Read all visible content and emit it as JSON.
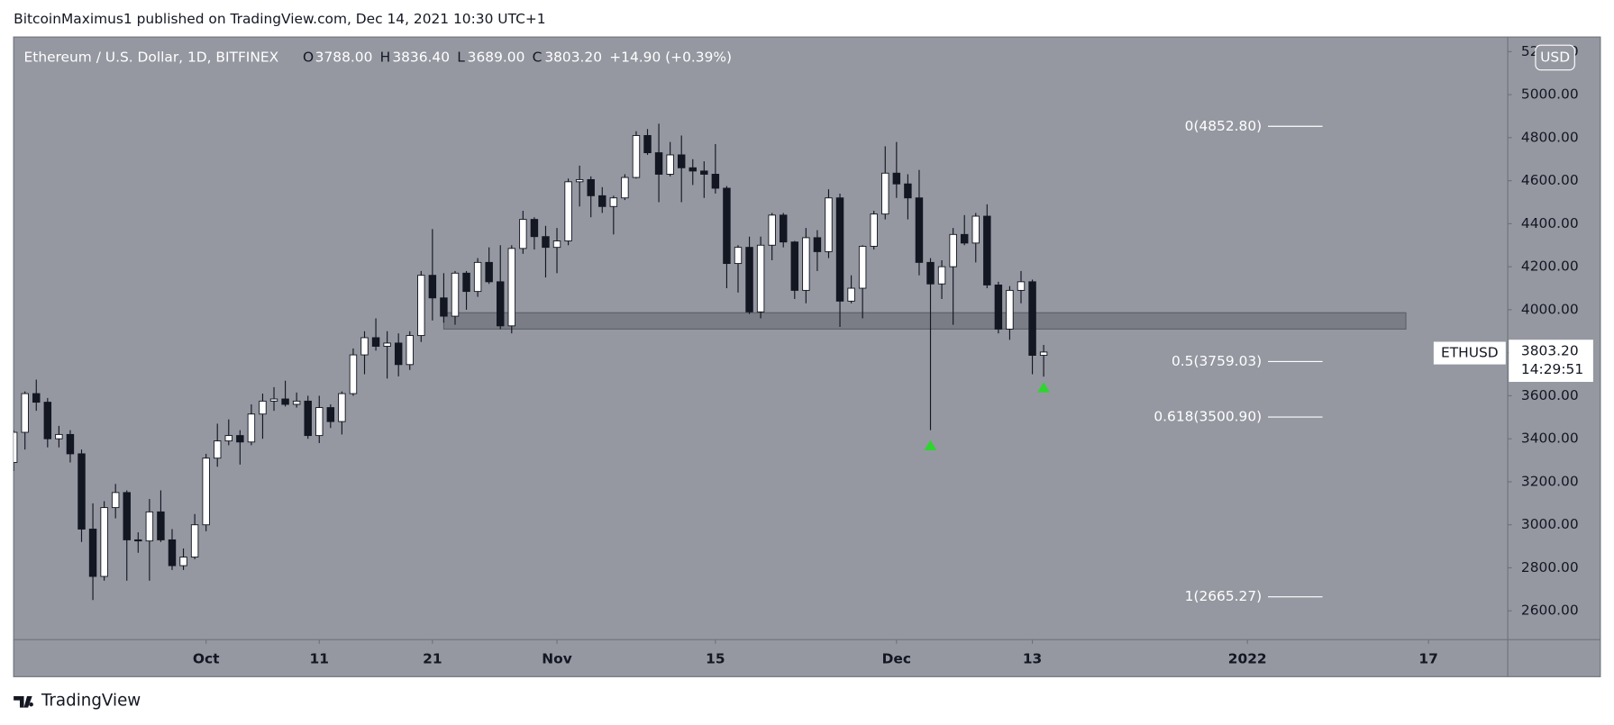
{
  "header": {
    "publisher": "BitcoinMaximus1 published on TradingView.com, Dec 14, 2021 10:30 UTC+1"
  },
  "footer": {
    "brand": "TradingView"
  },
  "chart_data": {
    "type": "candlestick",
    "title": "Ethereum / U.S. Dollar, 1D, BITFINEX",
    "legend": {
      "o_label": "O",
      "open": "3788.00",
      "h_label": "H",
      "high": "3836.40",
      "l_label": "L",
      "low": "3689.00",
      "c_label": "C",
      "close": "3803.20",
      "change": "+14.90 (+0.39%)"
    },
    "x": [
      "2021-09-14",
      "2021-09-15",
      "2021-09-16",
      "2021-09-17",
      "2021-09-18",
      "2021-09-19",
      "2021-09-20",
      "2021-09-21",
      "2021-09-22",
      "2021-09-23",
      "2021-09-24",
      "2021-09-25",
      "2021-09-26",
      "2021-09-27",
      "2021-09-28",
      "2021-09-29",
      "2021-09-30",
      "2021-10-01",
      "2021-10-02",
      "2021-10-03",
      "2021-10-04",
      "2021-10-05",
      "2021-10-06",
      "2021-10-07",
      "2021-10-08",
      "2021-10-09",
      "2021-10-10",
      "2021-10-11",
      "2021-10-12",
      "2021-10-13",
      "2021-10-14",
      "2021-10-15",
      "2021-10-16",
      "2021-10-17",
      "2021-10-18",
      "2021-10-19",
      "2021-10-20",
      "2021-10-21",
      "2021-10-22",
      "2021-10-23",
      "2021-10-24",
      "2021-10-25",
      "2021-10-26",
      "2021-10-27",
      "2021-10-28",
      "2021-10-29",
      "2021-10-30",
      "2021-10-31",
      "2021-11-01",
      "2021-11-02",
      "2021-11-03",
      "2021-11-04",
      "2021-11-05",
      "2021-11-06",
      "2021-11-07",
      "2021-11-08",
      "2021-11-09",
      "2021-11-10",
      "2021-11-11",
      "2021-11-12",
      "2021-11-13",
      "2021-11-14",
      "2021-11-15",
      "2021-11-16",
      "2021-11-17",
      "2021-11-18",
      "2021-11-19",
      "2021-11-20",
      "2021-11-21",
      "2021-11-22",
      "2021-11-23",
      "2021-11-24",
      "2021-11-25",
      "2021-11-26",
      "2021-11-27",
      "2021-11-28",
      "2021-11-29",
      "2021-11-30",
      "2021-12-01",
      "2021-12-02",
      "2021-12-03",
      "2021-12-04",
      "2021-12-05",
      "2021-12-06",
      "2021-12-07",
      "2021-12-08",
      "2021-12-09",
      "2021-12-10",
      "2021-12-11",
      "2021-12-12",
      "2021-12-13",
      "2021-12-14"
    ],
    "open": [
      3290,
      3430,
      3610,
      3570,
      3400,
      3420,
      3330,
      2980,
      2760,
      3080,
      3150,
      2930,
      2925,
      3060,
      2930,
      2810,
      2850,
      3000,
      3310,
      3390,
      3415,
      3385,
      3515,
      3575,
      3585,
      3560,
      3575,
      3415,
      3545,
      3480,
      3610,
      3790,
      3870,
      3830,
      3845,
      3745,
      3880,
      4160,
      4055,
      3970,
      4170,
      4085,
      4220,
      4130,
      3925,
      4285,
      4420,
      4340,
      4290,
      4320,
      4595,
      4605,
      4530,
      4480,
      4520,
      4615,
      4810,
      4730,
      4630,
      4720,
      4660,
      4645,
      4630,
      4565,
      4215,
      4290,
      3990,
      4300,
      4440,
      4315,
      4090,
      4335,
      4270,
      4520,
      4040,
      4100,
      4295,
      4445,
      4635,
      4585,
      4520,
      4220,
      4120,
      4200,
      4350,
      4310,
      4435,
      4115,
      3910,
      4090,
      4130,
      3788
    ],
    "high": [
      3440,
      3620,
      3675,
      3590,
      3460,
      3440,
      3350,
      3100,
      3110,
      3190,
      3160,
      2965,
      3120,
      3160,
      2980,
      2890,
      3050,
      3330,
      3470,
      3490,
      3440,
      3560,
      3610,
      3640,
      3670,
      3615,
      3600,
      3600,
      3560,
      3620,
      3820,
      3900,
      3960,
      3900,
      3890,
      3900,
      4180,
      4375,
      4170,
      4180,
      4180,
      4240,
      4290,
      4300,
      4300,
      4460,
      4430,
      4390,
      4380,
      4610,
      4670,
      4620,
      4570,
      4530,
      4630,
      4830,
      4840,
      4865,
      4780,
      4810,
      4700,
      4690,
      4770,
      4575,
      4300,
      4340,
      4340,
      4450,
      4450,
      4320,
      4380,
      4370,
      4560,
      4540,
      4160,
      4300,
      4460,
      4760,
      4780,
      4630,
      4650,
      4240,
      4230,
      4380,
      4440,
      4450,
      4490,
      4130,
      4110,
      4180,
      4140,
      3836.4
    ],
    "low": [
      3250,
      3350,
      3530,
      3360,
      3360,
      3290,
      2920,
      2650,
      2740,
      3030,
      2740,
      2870,
      2740,
      2920,
      2790,
      2790,
      2840,
      2970,
      3270,
      3370,
      3280,
      3370,
      3400,
      3530,
      3550,
      3545,
      3400,
      3380,
      3450,
      3420,
      3600,
      3700,
      3810,
      3680,
      3690,
      3720,
      3850,
      3950,
      3940,
      3930,
      4000,
      4060,
      4120,
      3910,
      3890,
      4260,
      4280,
      4150,
      4170,
      4300,
      4480,
      4430,
      4450,
      4350,
      4510,
      4610,
      4720,
      4500,
      4620,
      4500,
      4580,
      4520,
      4540,
      4100,
      4080,
      3980,
      3960,
      4230,
      4290,
      4050,
      4030,
      4180,
      4240,
      3920,
      4030,
      3960,
      4280,
      4420,
      4520,
      4420,
      4160,
      3440,
      4050,
      3930,
      4300,
      4220,
      4100,
      3890,
      3860,
      4030,
      3700,
      3689
    ],
    "close": [
      3430,
      3610,
      3570,
      3400,
      3420,
      3330,
      2980,
      2760,
      3080,
      3150,
      2930,
      2925,
      3060,
      2930,
      2810,
      2850,
      3000,
      3310,
      3390,
      3415,
      3385,
      3515,
      3575,
      3585,
      3560,
      3575,
      3415,
      3545,
      3480,
      3610,
      3790,
      3870,
      3830,
      3845,
      3745,
      3880,
      4160,
      4055,
      3970,
      4170,
      4085,
      4220,
      4130,
      3925,
      4285,
      4420,
      4340,
      4290,
      4320,
      4595,
      4605,
      4530,
      4480,
      4520,
      4615,
      4810,
      4730,
      4630,
      4720,
      4660,
      4645,
      4630,
      4565,
      4215,
      4290,
      3990,
      4300,
      4440,
      4315,
      4090,
      4335,
      4270,
      4520,
      4040,
      4100,
      4295,
      4445,
      4635,
      4585,
      4520,
      4220,
      4120,
      4200,
      4350,
      4310,
      4435,
      4115,
      3910,
      4090,
      4130,
      3788,
      3803.2
    ],
    "up_color": "#ffffff",
    "down_color": "#131722",
    "xlim": [
      "2021-09-14",
      "2022-01-24"
    ],
    "xticks": [
      {
        "value": "2021-10-01",
        "label": "Oct"
      },
      {
        "value": "2021-10-11",
        "label": "11"
      },
      {
        "value": "2021-10-21",
        "label": "21"
      },
      {
        "value": "2021-11-01",
        "label": "Nov"
      },
      {
        "value": "2021-11-15",
        "label": "15"
      },
      {
        "value": "2021-12-01",
        "label": "Dec"
      },
      {
        "value": "2021-12-13",
        "label": "13"
      },
      {
        "value": "2022-01-01",
        "label": "2022"
      },
      {
        "value": "2022-01-17",
        "label": "17"
      }
    ],
    "ylim": [
      2466,
      5268
    ],
    "yticks": [
      {
        "value": 2600,
        "label": "2600.00"
      },
      {
        "value": 2800,
        "label": "2800.00"
      },
      {
        "value": 3000,
        "label": "3000.00"
      },
      {
        "value": 3200,
        "label": "3200.00"
      },
      {
        "value": 3400,
        "label": "3400.00"
      },
      {
        "value": 3600,
        "label": "3600.00"
      },
      {
        "value": 3800,
        "label": "3800.00"
      },
      {
        "value": 4000,
        "label": "4000.00"
      },
      {
        "value": 4200,
        "label": "4200.00"
      },
      {
        "value": 4400,
        "label": "4400.00"
      },
      {
        "value": 4600,
        "label": "4600.00"
      },
      {
        "value": 4800,
        "label": "4800.00"
      },
      {
        "value": 5000,
        "label": "5000.00"
      },
      {
        "value": 5200,
        "label": "5200.00"
      }
    ],
    "currency": "USD",
    "symbol": "ETHUSD",
    "last_price": {
      "value": 3803.2,
      "label": "3803.20"
    },
    "countdown": "14:29:51",
    "fib_levels": [
      {
        "value": 4852.8,
        "label": "0(4852.80)"
      },
      {
        "value": 3759.03,
        "label": "0.5(3759.03)"
      },
      {
        "value": 3500.9,
        "label": "0.618(3500.90)"
      },
      {
        "value": 2665.27,
        "label": "1(2665.27)"
      }
    ],
    "fib_color": "#ffffff",
    "zone": {
      "ylim": [
        3910,
        3986
      ],
      "xlim": [
        "2021-10-22",
        "2022-01-15"
      ]
    },
    "markers": [
      {
        "x": "2021-12-04",
        "value": 3370
      },
      {
        "x": "2021-12-14",
        "value": 3640
      }
    ],
    "marker_color": "#2ed52e"
  }
}
